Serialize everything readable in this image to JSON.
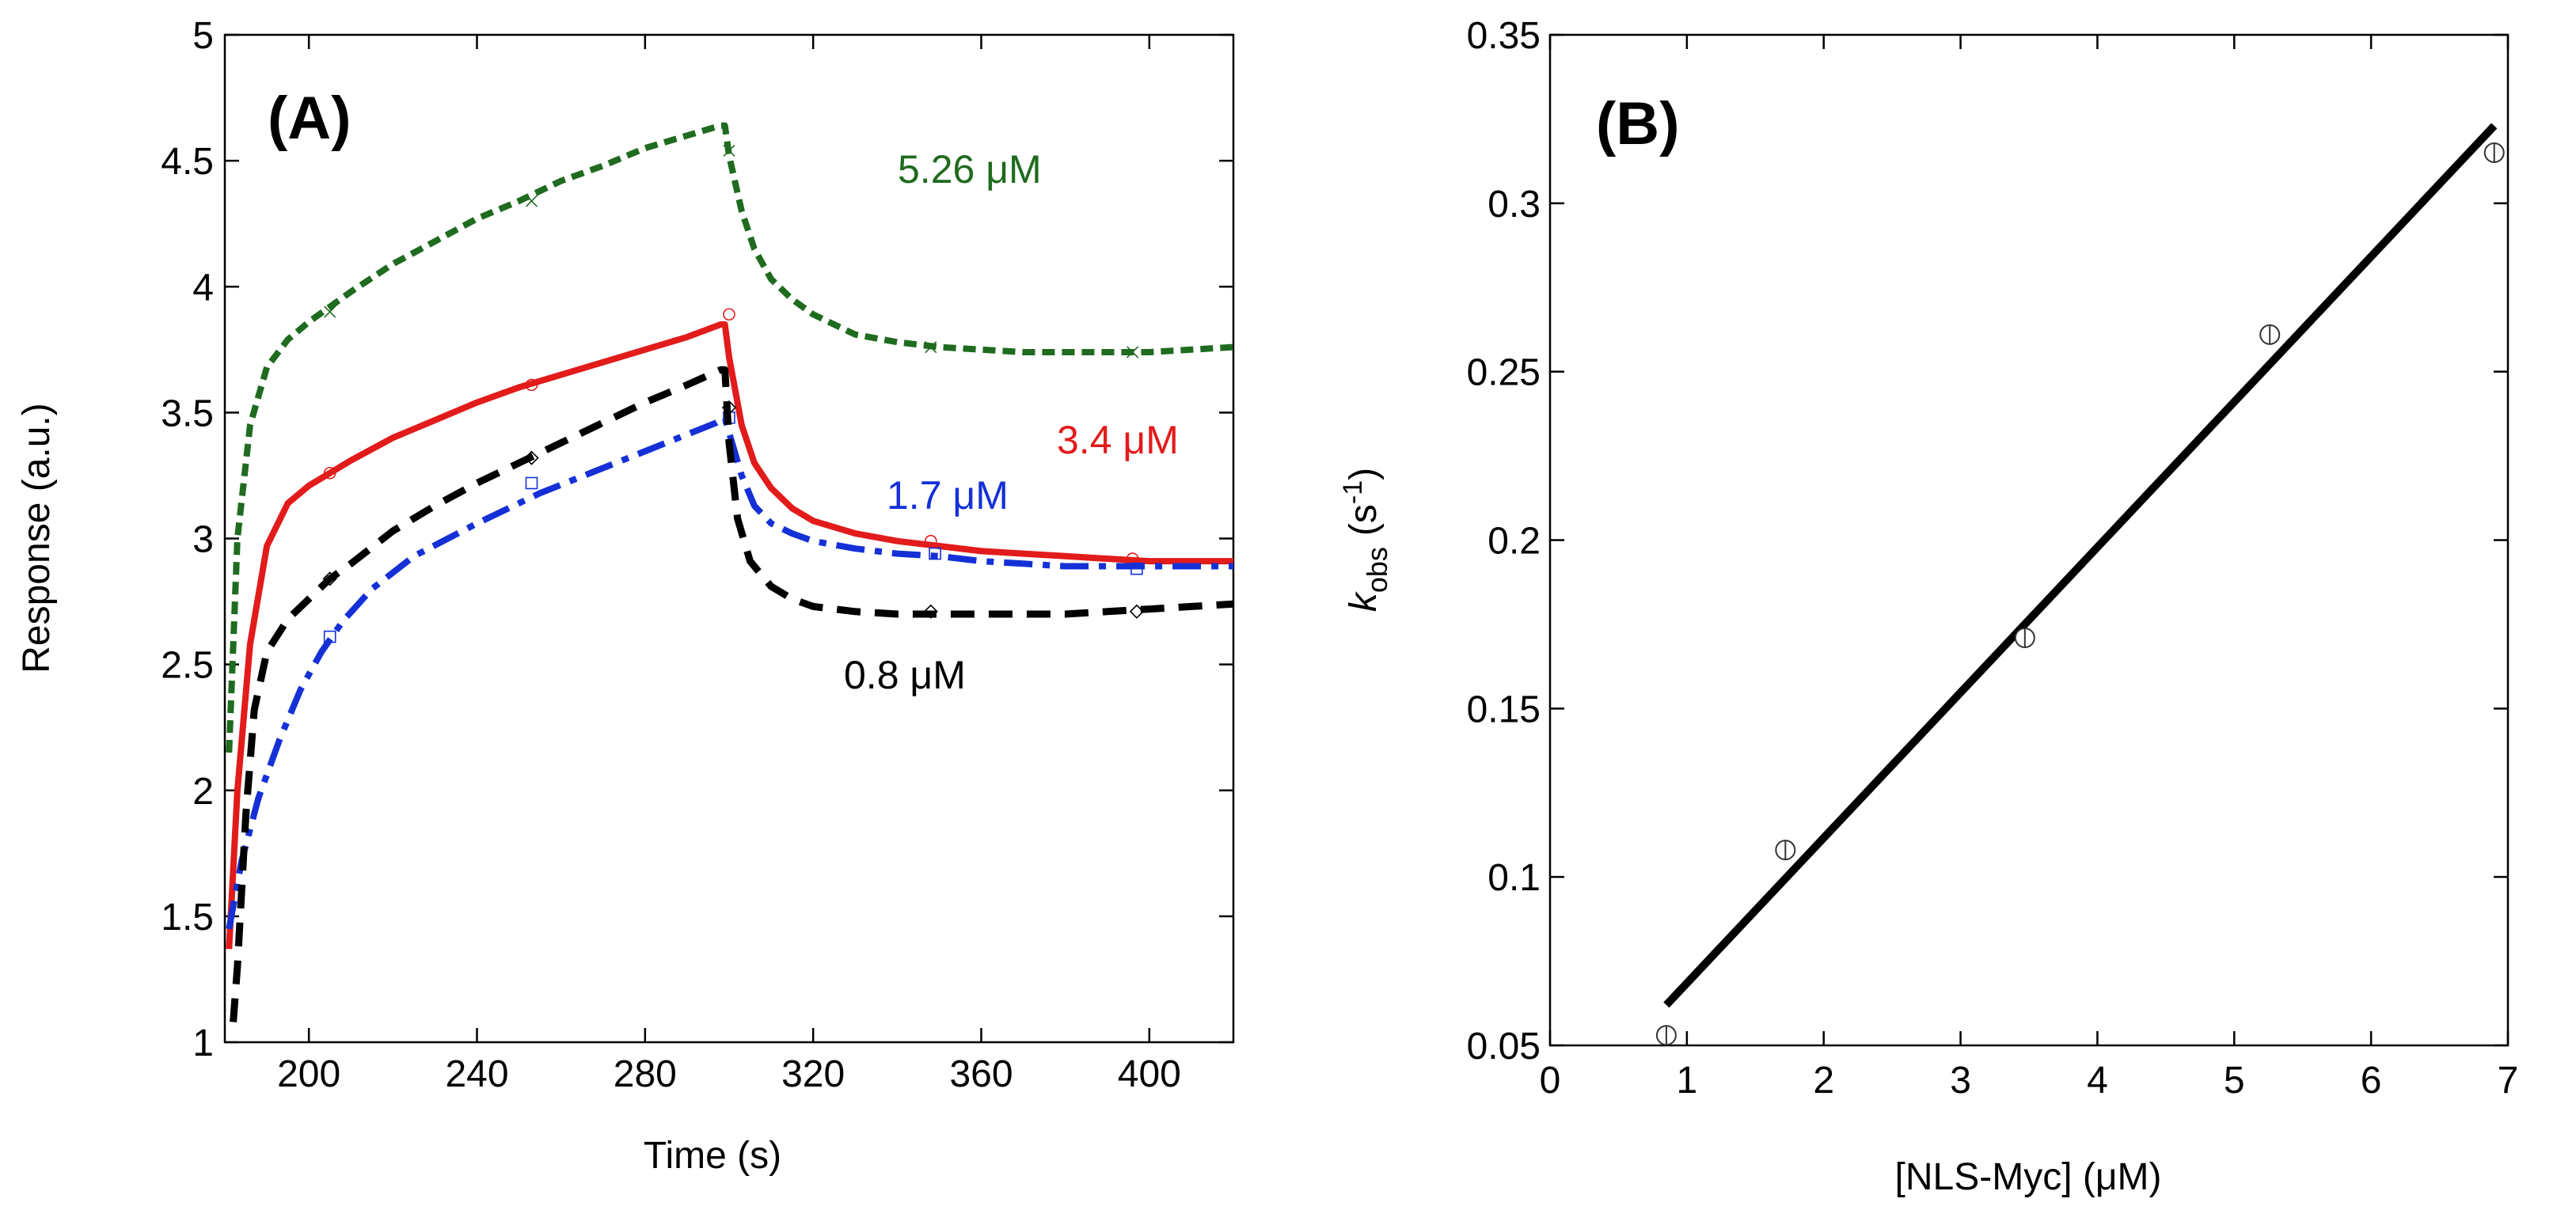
{
  "chart_data": [
    {
      "type": "line",
      "panel_label": "(A)",
      "xlabel": "Time (s)",
      "ylabel": "Response (a.u.)",
      "xlim": [
        180,
        420
      ],
      "ylim": [
        1,
        5
      ],
      "x_ticks": [
        "200",
        "240",
        "280",
        "320",
        "360",
        "400"
      ],
      "y_ticks": [
        "1",
        "1.5",
        "2",
        "2.5",
        "3",
        "3.5",
        "4",
        "4.5",
        "5"
      ],
      "grid": false,
      "series": [
        {
          "name": "5.26 μM",
          "color": "#1f6b1f",
          "line_style": "short-dash",
          "marker": "x",
          "points": [
            [
              181,
              2.15
            ],
            [
              183,
              3.0
            ],
            [
              186,
              3.45
            ],
            [
              190,
              3.68
            ],
            [
              195,
              3.79
            ],
            [
              200,
              3.86
            ],
            [
              205,
              3.92
            ],
            [
              210,
              3.98
            ],
            [
              220,
              4.09
            ],
            [
              230,
              4.18
            ],
            [
              240,
              4.27
            ],
            [
              250,
              4.34
            ],
            [
              260,
              4.42
            ],
            [
              270,
              4.48
            ],
            [
              280,
              4.55
            ],
            [
              290,
              4.6
            ],
            [
              298,
              4.64
            ],
            [
              299,
              4.64
            ],
            [
              300,
              4.52
            ],
            [
              303,
              4.3
            ],
            [
              306,
              4.15
            ],
            [
              310,
              4.03
            ],
            [
              315,
              3.95
            ],
            [
              320,
              3.89
            ],
            [
              330,
              3.81
            ],
            [
              340,
              3.78
            ],
            [
              350,
              3.76
            ],
            [
              360,
              3.75
            ],
            [
              370,
              3.74
            ],
            [
              380,
              3.74
            ],
            [
              390,
              3.74
            ],
            [
              400,
              3.74
            ],
            [
              410,
              3.75
            ],
            [
              420,
              3.76
            ]
          ],
          "markers": [
            [
              205,
              3.9
            ],
            [
              253,
              4.34
            ],
            [
              300,
              4.54
            ],
            [
              348,
              3.76
            ],
            [
              396,
              3.74
            ]
          ]
        },
        {
          "name": "3.4 μM",
          "color": "#e21b1b",
          "line_style": "solid",
          "marker": "circle",
          "points": [
            [
              181,
              1.37
            ],
            [
              183,
              2.0
            ],
            [
              186,
              2.58
            ],
            [
              190,
              2.97
            ],
            [
              195,
              3.14
            ],
            [
              200,
              3.21
            ],
            [
              205,
              3.26
            ],
            [
              210,
              3.31
            ],
            [
              220,
              3.4
            ],
            [
              230,
              3.47
            ],
            [
              240,
              3.54
            ],
            [
              250,
              3.6
            ],
            [
              260,
              3.65
            ],
            [
              270,
              3.7
            ],
            [
              280,
              3.75
            ],
            [
              290,
              3.8
            ],
            [
              298,
              3.85
            ],
            [
              299,
              3.85
            ],
            [
              300,
              3.72
            ],
            [
              303,
              3.45
            ],
            [
              306,
              3.3
            ],
            [
              310,
              3.2
            ],
            [
              315,
              3.12
            ],
            [
              320,
              3.07
            ],
            [
              330,
              3.02
            ],
            [
              340,
              2.99
            ],
            [
              350,
              2.97
            ],
            [
              360,
              2.95
            ],
            [
              370,
              2.94
            ],
            [
              380,
              2.93
            ],
            [
              390,
              2.92
            ],
            [
              400,
              2.91
            ],
            [
              410,
              2.91
            ],
            [
              420,
              2.91
            ]
          ],
          "markers": [
            [
              205,
              3.26
            ],
            [
              253,
              3.61
            ],
            [
              300,
              3.89
            ],
            [
              348,
              2.99
            ],
            [
              396,
              2.92
            ]
          ]
        },
        {
          "name": "1.7 μM",
          "color": "#1430d6",
          "line_style": "dash-dot",
          "marker": "square",
          "points": [
            [
              181,
              1.45
            ],
            [
              184,
              1.72
            ],
            [
              188,
              1.97
            ],
            [
              193,
              2.2
            ],
            [
              198,
              2.4
            ],
            [
              203,
              2.55
            ],
            [
              208,
              2.67
            ],
            [
              215,
              2.8
            ],
            [
              225,
              2.93
            ],
            [
              240,
              3.06
            ],
            [
              255,
              3.18
            ],
            [
              270,
              3.28
            ],
            [
              285,
              3.38
            ],
            [
              297,
              3.46
            ],
            [
              299,
              3.48
            ],
            [
              300,
              3.42
            ],
            [
              303,
              3.25
            ],
            [
              306,
              3.13
            ],
            [
              310,
              3.06
            ],
            [
              315,
              3.02
            ],
            [
              320,
              2.99
            ],
            [
              330,
              2.96
            ],
            [
              340,
              2.94
            ],
            [
              350,
              2.93
            ],
            [
              360,
              2.91
            ],
            [
              370,
              2.9
            ],
            [
              380,
              2.89
            ],
            [
              390,
              2.89
            ],
            [
              400,
              2.89
            ],
            [
              410,
              2.89
            ],
            [
              420,
              2.89
            ]
          ],
          "markers": [
            [
              205,
              2.61
            ],
            [
              253,
              3.22
            ],
            [
              300,
              3.48
            ],
            [
              349,
              2.94
            ],
            [
              397,
              2.88
            ]
          ]
        },
        {
          "name": "0.8 μM",
          "color": "#000000",
          "line_style": "long-dash",
          "marker": "diamond",
          "points": [
            [
              182,
              1.08
            ],
            [
              183,
              1.3
            ],
            [
              185,
              1.9
            ],
            [
              187,
              2.32
            ],
            [
              190,
              2.55
            ],
            [
              195,
              2.68
            ],
            [
              200,
              2.76
            ],
            [
              205,
              2.84
            ],
            [
              210,
              2.9
            ],
            [
              220,
              3.03
            ],
            [
              230,
              3.13
            ],
            [
              240,
              3.22
            ],
            [
              250,
              3.3
            ],
            [
              260,
              3.38
            ],
            [
              270,
              3.46
            ],
            [
              280,
              3.54
            ],
            [
              290,
              3.61
            ],
            [
              298,
              3.67
            ],
            [
              299,
              3.67
            ],
            [
              300,
              3.38
            ],
            [
              302,
              3.08
            ],
            [
              305,
              2.91
            ],
            [
              310,
              2.81
            ],
            [
              315,
              2.76
            ],
            [
              320,
              2.73
            ],
            [
              330,
              2.71
            ],
            [
              340,
              2.7
            ],
            [
              350,
              2.7
            ],
            [
              360,
              2.7
            ],
            [
              370,
              2.7
            ],
            [
              380,
              2.7
            ],
            [
              390,
              2.71
            ],
            [
              400,
              2.72
            ],
            [
              410,
              2.73
            ],
            [
              420,
              2.74
            ]
          ],
          "markers": [
            [
              205,
              2.84
            ],
            [
              253,
              3.32
            ],
            [
              300,
              3.52
            ],
            [
              348,
              2.71
            ],
            [
              397,
              2.71
            ]
          ]
        }
      ]
    },
    {
      "type": "scatter",
      "panel_label": "(B)",
      "xlabel": "[NLS-Myc] (μM)",
      "ylabel_main": "k",
      "ylabel_sub": "obs",
      "ylabel_unit_open": "(s",
      "ylabel_unit_sup": "-1",
      "ylabel_unit_close": ")",
      "xlim": [
        0,
        7
      ],
      "ylim": [
        0.05,
        0.35
      ],
      "x_ticks": [
        "0",
        "1",
        "2",
        "3",
        "4",
        "5",
        "6",
        "7"
      ],
      "y_ticks": [
        "0.05",
        "0.1",
        "0.15",
        "0.2",
        "0.25",
        "0.3",
        "0.35"
      ],
      "grid": false,
      "points": [
        {
          "x": 0.85,
          "y": 0.053
        },
        {
          "x": 1.72,
          "y": 0.108
        },
        {
          "x": 3.47,
          "y": 0.171
        },
        {
          "x": 5.26,
          "y": 0.261
        },
        {
          "x": 6.9,
          "y": 0.315
        }
      ],
      "fit_line": {
        "x": [
          0.85,
          6.9
        ],
        "y": [
          0.062,
          0.323
        ]
      },
      "line_color": "#000000"
    }
  ]
}
